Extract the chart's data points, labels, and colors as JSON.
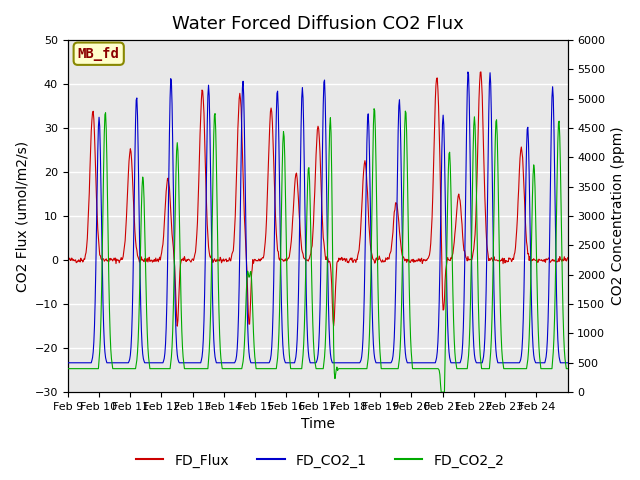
{
  "title": "Water Forced Diffusion CO2 Flux",
  "xlabel": "Time",
  "ylabel_left": "CO2 Flux (umol/m2/s)",
  "ylabel_right": "CO2 Concentration (ppm)",
  "ylim_left": [
    -30,
    50
  ],
  "ylim_right": [
    0,
    6000
  ],
  "xtick_labels": [
    "Feb 9",
    "Feb 10",
    "Feb 11",
    "Feb 12",
    "Feb 13",
    "Feb 14",
    "Feb 15",
    "Feb 16",
    "Feb 17",
    "Feb 18",
    "Feb 19",
    "Feb 20",
    "Feb 21",
    "Feb 22",
    "Feb 23",
    "Feb 24"
  ],
  "color_flux": "#cc0000",
  "color_co2_1": "#0000cc",
  "color_co2_2": "#00aa00",
  "legend_entries": [
    "FD_Flux",
    "FD_CO2_1",
    "FD_CO2_2"
  ],
  "annotation_text": "MB_fd",
  "annotation_color": "#8b0000",
  "annotation_bg": "#ffffcc",
  "bg_color": "#e8e8e8",
  "grid_color": "#ffffff",
  "title_fontsize": 13,
  "label_fontsize": 10,
  "tick_fontsize": 8,
  "legend_fontsize": 10,
  "seed": 42
}
